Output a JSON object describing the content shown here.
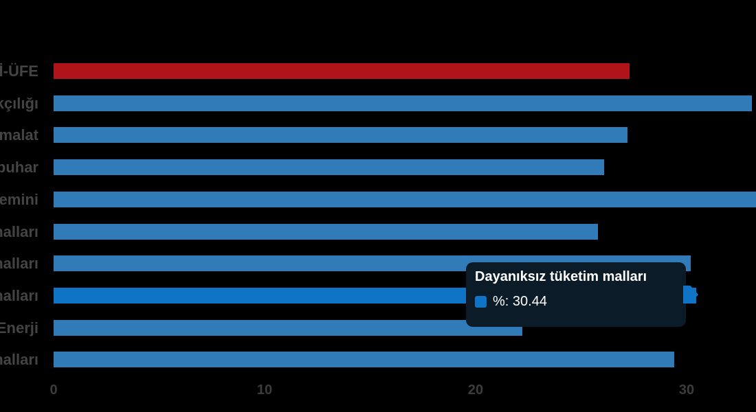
{
  "colors": {
    "background": "#000000",
    "bar_blue": "#317cb8",
    "bar_highlight": "#0f74c6",
    "bar_red": "#b0141b",
    "label_color": "#444444",
    "tick_color": "#3c3c3c",
    "tooltip_bg": "#0c1b28",
    "tooltip_text": "#ffffff"
  },
  "tooltip": {
    "title": "Dayanıksız tüketim malları",
    "value_text": "%: 30.44",
    "swatch_color": "#0f74c6",
    "arrow_color": "#0f74c6"
  },
  "chart_data": {
    "type": "bar",
    "orientation": "horizontal",
    "title": "",
    "xlabel": "",
    "ylabel": "",
    "xlim": [
      0,
      33.3
    ],
    "x_ticks": [
      "0",
      "10",
      "20",
      "30"
    ],
    "grid": false,
    "legend": false,
    "unit": "%",
    "bars": [
      {
        "label": "İ-ÜFE",
        "value": 27.3,
        "color": "#b0141b",
        "clipped": false,
        "highlighted": false
      },
      {
        "label": "kçılığı",
        "value": 33.1,
        "color": "#317cb8",
        "clipped": false,
        "highlighted": false
      },
      {
        "label": "malat",
        "value": 27.2,
        "color": "#317cb8",
        "clipped": false,
        "highlighted": false
      },
      {
        "label": "buhar",
        "value": 26.1,
        "color": "#317cb8",
        "clipped": false,
        "highlighted": false
      },
      {
        "label": "emini",
        "value": 33.3,
        "color": "#317cb8",
        "clipped": true,
        "highlighted": false
      },
      {
        "label": "malları",
        "value": 25.8,
        "color": "#317cb8",
        "clipped": false,
        "highlighted": false
      },
      {
        "label": "malları",
        "value": 30.2,
        "color": "#317cb8",
        "clipped": false,
        "highlighted": false
      },
      {
        "label": "malları",
        "value": 30.44,
        "color": "#0f74c6",
        "clipped": false,
        "highlighted": true
      },
      {
        "label": "Enerji",
        "value": 22.2,
        "color": "#317cb8",
        "clipped": false,
        "highlighted": false
      },
      {
        "label": "malları",
        "value": 29.4,
        "color": "#317cb8",
        "clipped": false,
        "highlighted": false
      }
    ]
  }
}
